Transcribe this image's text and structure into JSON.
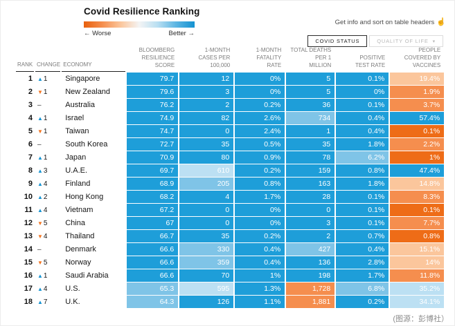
{
  "header": {
    "title": "Covid Resilience Ranking",
    "legend": {
      "worse": "← Worse",
      "better": "Better →",
      "gradient": [
        "#e8600d",
        "#f58e4e",
        "#fbc69c",
        "#f4f4f4",
        "#b9dff2",
        "#5cb5e2",
        "#1492d1"
      ]
    },
    "info": "Get info and sort on table headers",
    "tabs": [
      {
        "label": "COVID STATUS",
        "active": true
      },
      {
        "label": "QUALITY OF LIFE",
        "active": false
      }
    ]
  },
  "icons": {
    "pointer": "☝",
    "chevron_down": "▾",
    "up_arrow": "▲",
    "down_arrow": "▼",
    "no_change": "–"
  },
  "palette": {
    "blue": "#1e9ed9",
    "blueMid": "#7fc4e7",
    "blueLight": "#bce0f3",
    "orangeDark": "#ee6c17",
    "orange": "#f58e4e",
    "orangeLight": "#fbc69c",
    "upArrow": "#1492d1",
    "downArrow": "#f2731e",
    "noChange": "#333333",
    "cellText": "#ffffff"
  },
  "chart_data": {
    "type": "table",
    "title": "Covid Resilience Ranking",
    "columns": [
      "RANK",
      "CHANGE",
      "ECONOMY",
      "BLOOMBERG\nRESILIENCE\nSCORE",
      "1-MONTH\nCASES PER\n100,000",
      "1-MONTH\nFATALITY\nRATE",
      "TOTAL DEATHS\nPER 1\nMILLION",
      "POSITIVE\nTEST RATE",
      "PEOPLE\nCOVERED BY\nVACCINES"
    ],
    "rows": [
      {
        "rank": "1",
        "change": {
          "dir": "up",
          "num": "1"
        },
        "economy": "Singapore",
        "values": [
          {
            "t": "79.7",
            "c": "blue"
          },
          {
            "t": "12",
            "c": "blue"
          },
          {
            "t": "0%",
            "c": "blue"
          },
          {
            "t": "5",
            "c": "blue"
          },
          {
            "t": "0.1%",
            "c": "blue"
          },
          {
            "t": "19.4%",
            "c": "orangeLight"
          }
        ]
      },
      {
        "rank": "2",
        "change": {
          "dir": "down",
          "num": "1"
        },
        "economy": "New Zealand",
        "values": [
          {
            "t": "79.6",
            "c": "blue"
          },
          {
            "t": "3",
            "c": "blue"
          },
          {
            "t": "0%",
            "c": "blue"
          },
          {
            "t": "5",
            "c": "blue"
          },
          {
            "t": "0%",
            "c": "blue"
          },
          {
            "t": "1.9%",
            "c": "orange"
          }
        ]
      },
      {
        "rank": "3",
        "change": {
          "dir": "none",
          "num": ""
        },
        "economy": "Australia",
        "values": [
          {
            "t": "76.2",
            "c": "blue"
          },
          {
            "t": "2",
            "c": "blue"
          },
          {
            "t": "0.2%",
            "c": "blue"
          },
          {
            "t": "36",
            "c": "blue"
          },
          {
            "t": "0.1%",
            "c": "blue"
          },
          {
            "t": "3.7%",
            "c": "orange"
          }
        ]
      },
      {
        "rank": "4",
        "change": {
          "dir": "up",
          "num": "1"
        },
        "economy": "Israel",
        "values": [
          {
            "t": "74.9",
            "c": "blue"
          },
          {
            "t": "82",
            "c": "blue"
          },
          {
            "t": "2.6%",
            "c": "blue"
          },
          {
            "t": "734",
            "c": "blueMid"
          },
          {
            "t": "0.4%",
            "c": "blue"
          },
          {
            "t": "57.4%",
            "c": "blue"
          }
        ]
      },
      {
        "rank": "5",
        "change": {
          "dir": "down",
          "num": "1"
        },
        "economy": "Taiwan",
        "values": [
          {
            "t": "74.7",
            "c": "blue"
          },
          {
            "t": "0",
            "c": "blue"
          },
          {
            "t": "2.4%",
            "c": "blue"
          },
          {
            "t": "1",
            "c": "blue"
          },
          {
            "t": "0.4%",
            "c": "blue"
          },
          {
            "t": "0.1%",
            "c": "orangeDark"
          }
        ]
      },
      {
        "rank": "6",
        "change": {
          "dir": "none",
          "num": ""
        },
        "economy": "South Korea",
        "values": [
          {
            "t": "72.7",
            "c": "blue"
          },
          {
            "t": "35",
            "c": "blue"
          },
          {
            "t": "0.5%",
            "c": "blue"
          },
          {
            "t": "35",
            "c": "blue"
          },
          {
            "t": "1.8%",
            "c": "blue"
          },
          {
            "t": "2.2%",
            "c": "orange"
          }
        ]
      },
      {
        "rank": "7",
        "change": {
          "dir": "up",
          "num": "1"
        },
        "economy": "Japan",
        "values": [
          {
            "t": "70.9",
            "c": "blue"
          },
          {
            "t": "80",
            "c": "blue"
          },
          {
            "t": "0.9%",
            "c": "blue"
          },
          {
            "t": "78",
            "c": "blue"
          },
          {
            "t": "6.2%",
            "c": "blueMid"
          },
          {
            "t": "1%",
            "c": "orangeDark"
          }
        ]
      },
      {
        "rank": "8",
        "change": {
          "dir": "up",
          "num": "3"
        },
        "economy": "U.A.E.",
        "values": [
          {
            "t": "69.7",
            "c": "blue"
          },
          {
            "t": "610",
            "c": "blueLight"
          },
          {
            "t": "0.2%",
            "c": "blue"
          },
          {
            "t": "159",
            "c": "blue"
          },
          {
            "t": "0.8%",
            "c": "blue"
          },
          {
            "t": "47.4%",
            "c": "blue"
          }
        ]
      },
      {
        "rank": "9",
        "change": {
          "dir": "up",
          "num": "4"
        },
        "economy": "Finland",
        "values": [
          {
            "t": "68.9",
            "c": "blue"
          },
          {
            "t": "205",
            "c": "blueMid"
          },
          {
            "t": "0.8%",
            "c": "blue"
          },
          {
            "t": "163",
            "c": "blue"
          },
          {
            "t": "1.8%",
            "c": "blue"
          },
          {
            "t": "14.8%",
            "c": "orangeLight"
          }
        ]
      },
      {
        "rank": "10",
        "change": {
          "dir": "up",
          "num": "2"
        },
        "economy": "Hong Kong",
        "values": [
          {
            "t": "68.2",
            "c": "blue"
          },
          {
            "t": "4",
            "c": "blue"
          },
          {
            "t": "1.7%",
            "c": "blue"
          },
          {
            "t": "28",
            "c": "blue"
          },
          {
            "t": "0.1%",
            "c": "blue"
          },
          {
            "t": "8.3%",
            "c": "orange"
          }
        ]
      },
      {
        "rank": "11",
        "change": {
          "dir": "up",
          "num": "4"
        },
        "economy": "Vietnam",
        "values": [
          {
            "t": "67.2",
            "c": "blue"
          },
          {
            "t": "0",
            "c": "blue"
          },
          {
            "t": "0%",
            "c": "blue"
          },
          {
            "t": "0",
            "c": "blue"
          },
          {
            "t": "0.1%",
            "c": "blue"
          },
          {
            "t": "0.1%",
            "c": "orangeDark"
          }
        ]
      },
      {
        "rank": "12",
        "change": {
          "dir": "down",
          "num": "5"
        },
        "economy": "China",
        "values": [
          {
            "t": "67",
            "c": "blue"
          },
          {
            "t": "0",
            "c": "blue"
          },
          {
            "t": "0%",
            "c": "blue"
          },
          {
            "t": "3",
            "c": "blue"
          },
          {
            "t": "0.1%",
            "c": "blue"
          },
          {
            "t": "7.7%",
            "c": "orange"
          }
        ]
      },
      {
        "rank": "13",
        "change": {
          "dir": "down",
          "num": "4"
        },
        "economy": "Thailand",
        "values": [
          {
            "t": "66.7",
            "c": "blue"
          },
          {
            "t": "35",
            "c": "blue"
          },
          {
            "t": "0.2%",
            "c": "blue"
          },
          {
            "t": "2",
            "c": "blue"
          },
          {
            "t": "0.7%",
            "c": "blue"
          },
          {
            "t": "0.8%",
            "c": "orangeDark"
          }
        ]
      },
      {
        "rank": "14",
        "change": {
          "dir": "none",
          "num": ""
        },
        "economy": "Denmark",
        "values": [
          {
            "t": "66.6",
            "c": "blue"
          },
          {
            "t": "330",
            "c": "blueMid"
          },
          {
            "t": "0.4%",
            "c": "blue"
          },
          {
            "t": "427",
            "c": "blueMid"
          },
          {
            "t": "0.4%",
            "c": "blue"
          },
          {
            "t": "15.1%",
            "c": "orangeLight"
          }
        ]
      },
      {
        "rank": "15",
        "change": {
          "dir": "down",
          "num": "5"
        },
        "economy": "Norway",
        "values": [
          {
            "t": "66.6",
            "c": "blue"
          },
          {
            "t": "359",
            "c": "blueMid"
          },
          {
            "t": "0.4%",
            "c": "blue"
          },
          {
            "t": "136",
            "c": "blue"
          },
          {
            "t": "2.8%",
            "c": "blue"
          },
          {
            "t": "14%",
            "c": "orangeLight"
          }
        ]
      },
      {
        "rank": "16",
        "change": {
          "dir": "up",
          "num": "1"
        },
        "economy": "Saudi Arabia",
        "values": [
          {
            "t": "66.6",
            "c": "blue"
          },
          {
            "t": "70",
            "c": "blue"
          },
          {
            "t": "1%",
            "c": "blue"
          },
          {
            "t": "198",
            "c": "blue"
          },
          {
            "t": "1.7%",
            "c": "blue"
          },
          {
            "t": "11.8%",
            "c": "orange"
          }
        ]
      },
      {
        "rank": "17",
        "change": {
          "dir": "up",
          "num": "4"
        },
        "economy": "U.S.",
        "values": [
          {
            "t": "65.3",
            "c": "blueMid"
          },
          {
            "t": "595",
            "c": "blueLight"
          },
          {
            "t": "1.3%",
            "c": "blue"
          },
          {
            "t": "1,728",
            "c": "orange"
          },
          {
            "t": "6.8%",
            "c": "blueMid"
          },
          {
            "t": "35.2%",
            "c": "blueLight"
          }
        ]
      },
      {
        "rank": "18",
        "change": {
          "dir": "up",
          "num": "7"
        },
        "economy": "U.K.",
        "values": [
          {
            "t": "64.3",
            "c": "blueMid"
          },
          {
            "t": "126",
            "c": "blue"
          },
          {
            "t": "1.1%",
            "c": "blue"
          },
          {
            "t": "1,881",
            "c": "orange"
          },
          {
            "t": "0.2%",
            "c": "blue"
          },
          {
            "t": "34.1%",
            "c": "blueLight"
          }
        ]
      }
    ]
  },
  "footer": {
    "source": "(图源：彭博社）"
  }
}
